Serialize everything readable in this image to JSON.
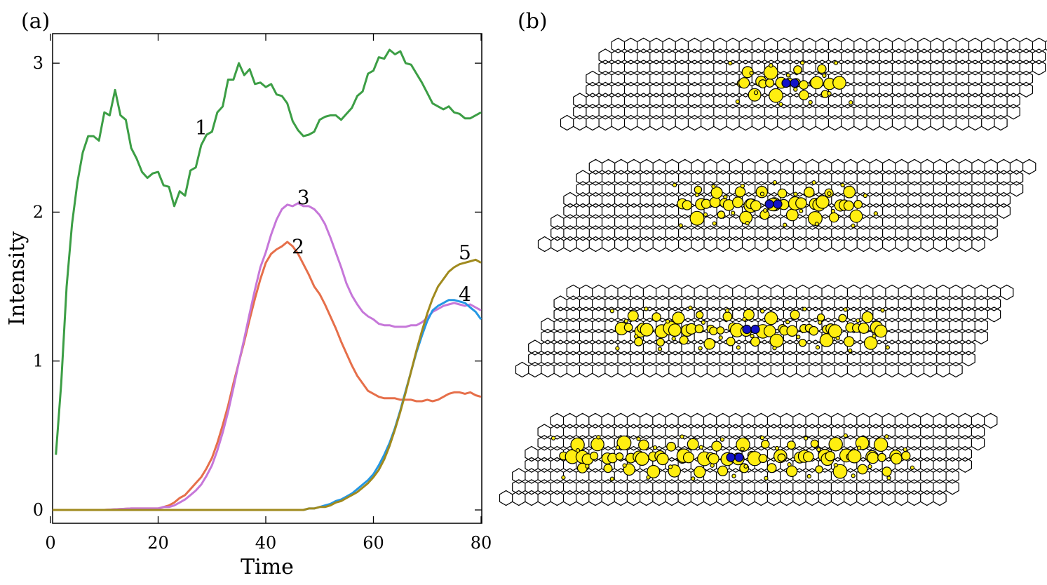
{
  "figure": {
    "panel_a_label": "(a)",
    "panel_b_label": "(b)"
  },
  "colors": {
    "axis": "#000000",
    "lattice": "#000000",
    "highlight_site": "#ffee10",
    "center_site": "#1212c8"
  },
  "chart_data": {
    "type": "line",
    "xlabel": "Time",
    "ylabel": "Intensity",
    "xlim": [
      0,
      80
    ],
    "ylim": [
      -0.1,
      3.2
    ],
    "xticks": [
      0,
      20,
      40,
      60,
      80
    ],
    "yticks": [
      0,
      1,
      2,
      3
    ],
    "grid": false,
    "series": [
      {
        "name": "1",
        "color": "#3c9e45",
        "label_at": [
          28,
          2.57
        ],
        "x": [
          1,
          2,
          3,
          4,
          5,
          6,
          7,
          8,
          9,
          10,
          11,
          12,
          13,
          14,
          15,
          16,
          17,
          18,
          19,
          20,
          21,
          22,
          23,
          24,
          25,
          26,
          27,
          28,
          29,
          30,
          31,
          32,
          33,
          34,
          35,
          36,
          37,
          38,
          39,
          40,
          41,
          42,
          43,
          44,
          45,
          46,
          47,
          48,
          49,
          50,
          51,
          52,
          53,
          54,
          55,
          56,
          57,
          58,
          59,
          60,
          61,
          62,
          63,
          64,
          65,
          66,
          67,
          68,
          69,
          70,
          71,
          72,
          73,
          74,
          75,
          76,
          77,
          78,
          79,
          80
        ],
        "values": [
          0.37,
          0.85,
          1.5,
          1.92,
          2.2,
          2.4,
          2.51,
          2.51,
          2.48,
          2.67,
          2.65,
          2.82,
          2.65,
          2.62,
          2.43,
          2.36,
          2.27,
          2.23,
          2.26,
          2.27,
          2.18,
          2.17,
          2.04,
          2.14,
          2.11,
          2.28,
          2.3,
          2.45,
          2.52,
          2.54,
          2.67,
          2.71,
          2.89,
          2.89,
          3.0,
          2.92,
          2.96,
          2.86,
          2.87,
          2.84,
          2.86,
          2.79,
          2.78,
          2.73,
          2.61,
          2.55,
          2.51,
          2.52,
          2.54,
          2.62,
          2.64,
          2.65,
          2.65,
          2.62,
          2.66,
          2.7,
          2.78,
          2.81,
          2.93,
          2.95,
          3.04,
          3.03,
          3.09,
          3.06,
          3.08,
          3.0,
          2.99,
          2.93,
          2.87,
          2.8,
          2.73,
          2.71,
          2.69,
          2.71,
          2.67,
          2.66,
          2.63,
          2.63,
          2.65,
          2.67
        ]
      },
      {
        "name": "2",
        "color": "#e66f4a",
        "label_at": [
          46,
          1.77
        ],
        "x": [
          0,
          5,
          10,
          15,
          20,
          21,
          22,
          23,
          24,
          25,
          26,
          27,
          28,
          29,
          30,
          31,
          32,
          33,
          34,
          35,
          36,
          37,
          38,
          39,
          40,
          41,
          42,
          43,
          44,
          45,
          46,
          47,
          48,
          49,
          50,
          51,
          52,
          53,
          54,
          55,
          56,
          57,
          58,
          59,
          60,
          61,
          62,
          63,
          64,
          65,
          66,
          67,
          68,
          69,
          70,
          71,
          72,
          73,
          74,
          75,
          76,
          77,
          78,
          79,
          80
        ],
        "values": [
          0,
          0,
          0,
          0.01,
          0.01,
          0.02,
          0.03,
          0.05,
          0.08,
          0.1,
          0.14,
          0.18,
          0.22,
          0.28,
          0.35,
          0.45,
          0.57,
          0.7,
          0.85,
          0.99,
          1.13,
          1.28,
          1.42,
          1.55,
          1.66,
          1.72,
          1.75,
          1.77,
          1.8,
          1.77,
          1.72,
          1.65,
          1.58,
          1.5,
          1.45,
          1.38,
          1.3,
          1.22,
          1.13,
          1.05,
          0.97,
          0.9,
          0.85,
          0.8,
          0.78,
          0.76,
          0.75,
          0.75,
          0.75,
          0.74,
          0.74,
          0.74,
          0.73,
          0.73,
          0.74,
          0.73,
          0.74,
          0.76,
          0.78,
          0.79,
          0.79,
          0.78,
          0.79,
          0.77,
          0.76
        ]
      },
      {
        "name": "3",
        "color": "#c677d9",
        "label_at": [
          47,
          2.1
        ],
        "x": [
          0,
          5,
          10,
          15,
          20,
          21,
          22,
          23,
          24,
          25,
          26,
          27,
          28,
          29,
          30,
          31,
          32,
          33,
          34,
          35,
          36,
          37,
          38,
          39,
          40,
          41,
          42,
          43,
          44,
          45,
          46,
          47,
          48,
          49,
          50,
          51,
          52,
          53,
          54,
          55,
          56,
          57,
          58,
          59,
          60,
          61,
          62,
          63,
          64,
          65,
          66,
          67,
          68,
          69,
          70,
          71,
          72,
          73,
          74,
          75,
          76,
          77,
          78,
          79,
          80
        ],
        "values": [
          0,
          0,
          0,
          0.01,
          0.01,
          0.02,
          0.02,
          0.03,
          0.05,
          0.07,
          0.1,
          0.13,
          0.17,
          0.23,
          0.3,
          0.4,
          0.52,
          0.66,
          0.82,
          0.99,
          1.15,
          1.32,
          1.48,
          1.63,
          1.73,
          1.85,
          1.95,
          2.02,
          2.05,
          2.04,
          2.06,
          2.04,
          2.04,
          2.02,
          1.98,
          1.92,
          1.83,
          1.73,
          1.63,
          1.52,
          1.44,
          1.38,
          1.33,
          1.3,
          1.28,
          1.25,
          1.24,
          1.24,
          1.23,
          1.23,
          1.23,
          1.24,
          1.24,
          1.26,
          1.29,
          1.33,
          1.35,
          1.37,
          1.38,
          1.39,
          1.38,
          1.37,
          1.38,
          1.36,
          1.34
        ]
      },
      {
        "name": "4",
        "color": "#2497e3",
        "label_at": [
          77,
          1.45
        ],
        "x": [
          0,
          10,
          20,
          30,
          40,
          45,
          46,
          47,
          48,
          49,
          50,
          51,
          52,
          53,
          54,
          55,
          56,
          57,
          58,
          59,
          60,
          61,
          62,
          63,
          64,
          65,
          66,
          67,
          68,
          69,
          70,
          71,
          72,
          73,
          74,
          75,
          76,
          77,
          78,
          79,
          80
        ],
        "values": [
          0,
          0,
          0,
          0,
          0,
          0,
          0,
          0,
          0.01,
          0.01,
          0.02,
          0.03,
          0.04,
          0.06,
          0.07,
          0.09,
          0.11,
          0.14,
          0.17,
          0.2,
          0.24,
          0.3,
          0.37,
          0.45,
          0.55,
          0.67,
          0.8,
          0.93,
          1.06,
          1.17,
          1.27,
          1.34,
          1.37,
          1.39,
          1.41,
          1.41,
          1.4,
          1.39,
          1.36,
          1.33,
          1.28
        ]
      },
      {
        "name": "5",
        "color": "#a08a1e",
        "label_at": [
          77,
          1.73
        ],
        "x": [
          0,
          10,
          20,
          30,
          40,
          45,
          46,
          47,
          48,
          49,
          50,
          51,
          52,
          53,
          54,
          55,
          56,
          57,
          58,
          59,
          60,
          61,
          62,
          63,
          64,
          65,
          66,
          67,
          68,
          69,
          70,
          71,
          72,
          73,
          74,
          75,
          76,
          77,
          78,
          79,
          80
        ],
        "values": [
          0,
          0,
          0,
          0,
          0,
          0,
          0,
          0,
          0.01,
          0.01,
          0.02,
          0.02,
          0.03,
          0.05,
          0.06,
          0.08,
          0.1,
          0.12,
          0.15,
          0.18,
          0.22,
          0.27,
          0.34,
          0.43,
          0.54,
          0.66,
          0.79,
          0.93,
          1.07,
          1.2,
          1.32,
          1.42,
          1.5,
          1.55,
          1.6,
          1.63,
          1.65,
          1.66,
          1.67,
          1.68,
          1.66
        ]
      }
    ]
  },
  "lattice_panel": {
    "rows": 4,
    "sites_per_row": [
      {
        "big": 22,
        "small": 14
      },
      {
        "big": 40,
        "small": 24
      },
      {
        "big": 56,
        "small": 30
      },
      {
        "big": 72,
        "small": 36
      }
    ]
  }
}
